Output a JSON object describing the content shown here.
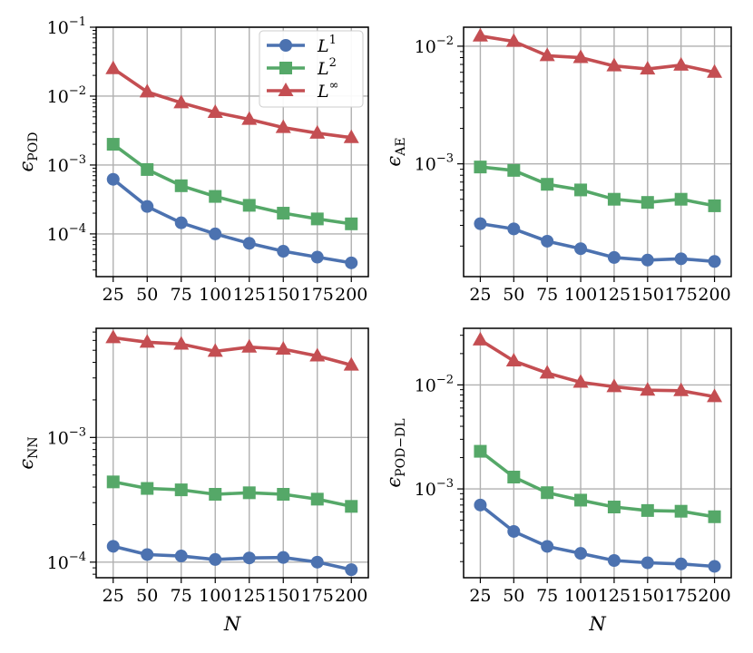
{
  "chart_data": [
    {
      "type": "line",
      "yscale": "log",
      "ylabel_main": "ϵ",
      "ylabel_sub": "POD",
      "xlabel": "",
      "x": [
        25,
        50,
        75,
        100,
        125,
        150,
        175,
        200
      ],
      "ylim": [
        2.4e-05,
        0.1
      ],
      "yticks": [
        {
          "value": 0.0001,
          "base": "10",
          "exp": "−4"
        },
        {
          "value": 0.001,
          "base": "10",
          "exp": "−3"
        },
        {
          "value": 0.01,
          "base": "10",
          "exp": "−2"
        },
        {
          "value": 0.1,
          "base": "10",
          "exp": "−1"
        }
      ],
      "grid": true,
      "legend": {
        "placement": "top-right",
        "entries": [
          {
            "base": "L",
            "sup": "1"
          },
          {
            "base": "L",
            "sup": "2"
          },
          {
            "base": "L",
            "sup": "∞"
          }
        ]
      },
      "series": [
        {
          "name": "L^1",
          "values": [
            0.00062,
            0.00025,
            0.000145,
            0.0001,
            7.3e-05,
            5.6e-05,
            4.6e-05,
            3.8e-05
          ]
        },
        {
          "name": "L^2",
          "values": [
            0.002,
            0.00086,
            0.0005,
            0.00035,
            0.00026,
            0.0002,
            0.000165,
            0.00014
          ]
        },
        {
          "name": "L^inf",
          "values": [
            0.025,
            0.0115,
            0.008,
            0.0058,
            0.0046,
            0.0035,
            0.0029,
            0.0025
          ]
        }
      ]
    },
    {
      "type": "line",
      "yscale": "log",
      "ylabel_main": "ϵ",
      "ylabel_sub": "AE",
      "xlabel": "",
      "x": [
        25,
        50,
        75,
        100,
        125,
        150,
        175,
        200
      ],
      "ylim": [
        0.00011,
        0.0145
      ],
      "yticks": [
        {
          "value": 0.001,
          "base": "10",
          "exp": "−3"
        },
        {
          "value": 0.01,
          "base": "10",
          "exp": "−2"
        }
      ],
      "grid": true,
      "series": [
        {
          "name": "L^1",
          "values": [
            0.00031,
            0.00028,
            0.00022,
            0.00019,
            0.00016,
            0.000152,
            0.000156,
            0.000148
          ]
        },
        {
          "name": "L^2",
          "values": [
            0.00094,
            0.00088,
            0.00067,
            0.0006,
            0.0005,
            0.00047,
            0.0005,
            0.00044
          ]
        },
        {
          "name": "L^inf",
          "values": [
            0.0122,
            0.011,
            0.0083,
            0.008,
            0.0068,
            0.0064,
            0.0069,
            0.006
          ]
        }
      ]
    },
    {
      "type": "line",
      "yscale": "log",
      "ylabel_main": "ϵ",
      "ylabel_sub": "NN",
      "xlabel": "N",
      "x": [
        25,
        50,
        75,
        100,
        125,
        150,
        175,
        200
      ],
      "ylim": [
        7.5e-05,
        0.0075
      ],
      "yticks": [
        {
          "value": 0.0001,
          "base": "10",
          "exp": "−4"
        },
        {
          "value": 0.001,
          "base": "10",
          "exp": "−3"
        }
      ],
      "grid": true,
      "series": [
        {
          "name": "L^1",
          "values": [
            0.000134,
            0.000115,
            0.000112,
            0.000105,
            0.000108,
            0.000109,
            0.0001,
            8.7e-05
          ]
        },
        {
          "name": "L^2",
          "values": [
            0.00044,
            0.00039,
            0.00038,
            0.00035,
            0.00036,
            0.00035,
            0.00032,
            0.00028
          ]
        },
        {
          "name": "L^inf",
          "values": [
            0.0063,
            0.0058,
            0.0056,
            0.0049,
            0.0053,
            0.0051,
            0.0045,
            0.0038
          ]
        }
      ]
    },
    {
      "type": "line",
      "yscale": "log",
      "ylabel_main": "ϵ",
      "ylabel_sub": "POD−DL",
      "xlabel": "N",
      "x": [
        25,
        50,
        75,
        100,
        125,
        150,
        175,
        200
      ],
      "ylim": [
        0.00014,
        0.035
      ],
      "yticks": [
        {
          "value": 0.001,
          "base": "10",
          "exp": "−3"
        },
        {
          "value": 0.01,
          "base": "10",
          "exp": "−2"
        }
      ],
      "grid": true,
      "series": [
        {
          "name": "L^1",
          "values": [
            0.0007,
            0.00039,
            0.00028,
            0.00024,
            0.000205,
            0.000195,
            0.00019,
            0.00018
          ]
        },
        {
          "name": "L^2",
          "values": [
            0.0023,
            0.0013,
            0.00092,
            0.00078,
            0.00067,
            0.00062,
            0.00061,
            0.00054
          ]
        },
        {
          "name": "L^inf",
          "values": [
            0.027,
            0.017,
            0.013,
            0.0106,
            0.0096,
            0.0089,
            0.0088,
            0.0077
          ]
        }
      ]
    }
  ],
  "colors": {
    "L^1": "#4c72b0",
    "L^2": "#55a868",
    "L^inf": "#c44e52"
  },
  "markers": {
    "L^1": "circle-icon",
    "L^2": "square-icon",
    "L^inf": "triangle-icon"
  }
}
